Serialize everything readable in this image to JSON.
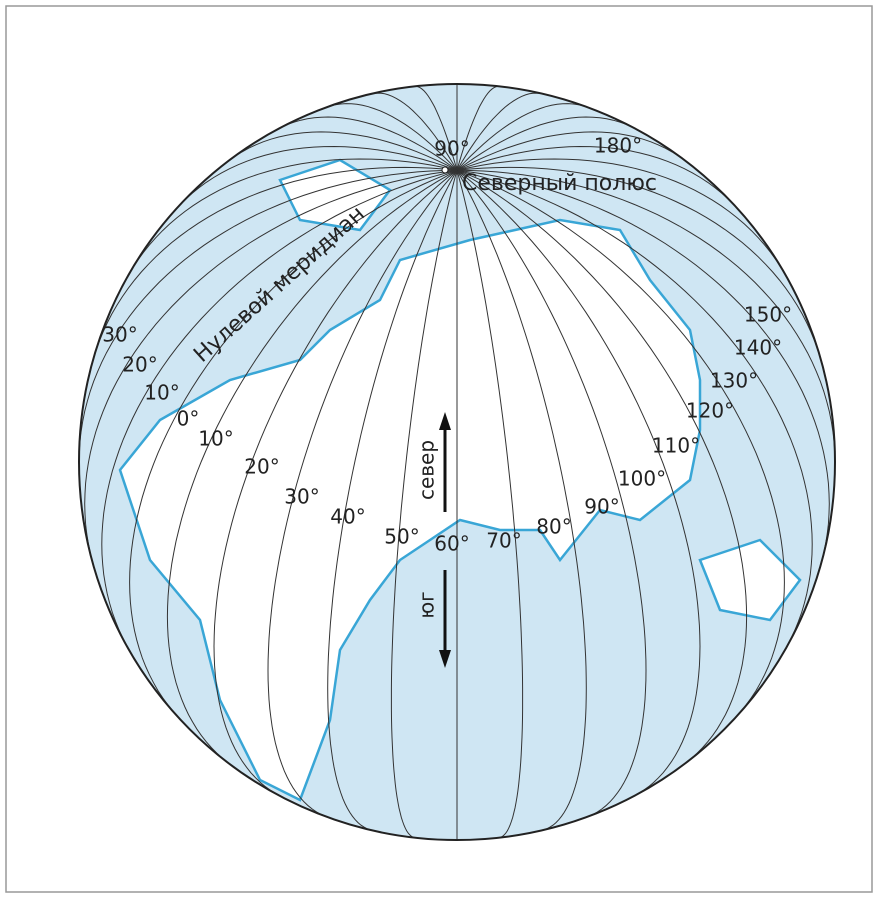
{
  "pole": {
    "lon_label": "90°",
    "dateline_label": "180°",
    "name": "Северный полюс"
  },
  "prime_meridian": "Нулевой меридиан",
  "meridian_labels": [
    "30°",
    "20°",
    "10°",
    "0°",
    "10°",
    "20°",
    "30°",
    "40°",
    "50°",
    "60°",
    "70°",
    "80°",
    "90°",
    "100°",
    "110°",
    "120°",
    "130°",
    "140°",
    "150°"
  ],
  "arrow": {
    "north": "север",
    "south": "юг"
  }
}
